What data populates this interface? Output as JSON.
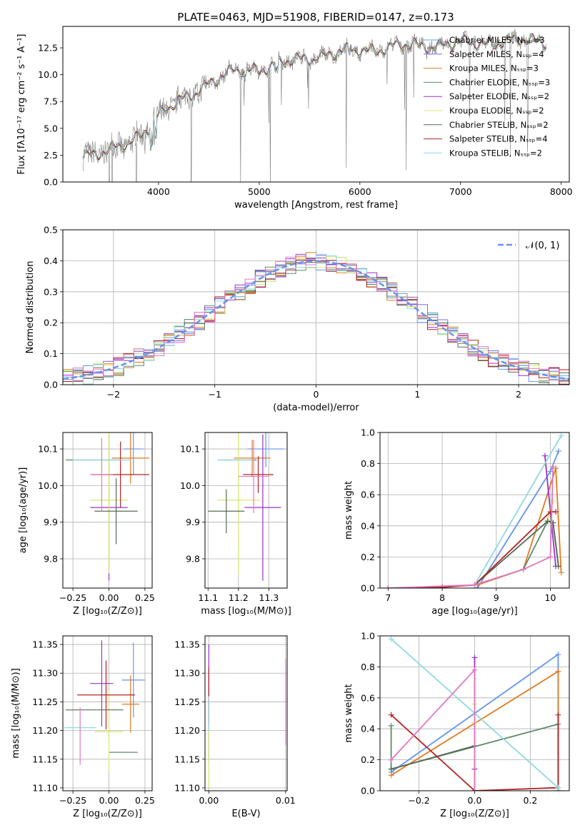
{
  "figure": {
    "title": "PLATE=0463, MJD=51908, FIBERID=0147, z=0.173"
  },
  "chart_data": [
    {
      "id": "spectrum",
      "type": "line",
      "xlabel": "wavelength [Angstrom, rest frame]",
      "ylabel": "Flux [fλ10⁻¹⁷ erg cm⁻² s⁻¹ A⁻¹]",
      "xlim": [
        3050,
        8080
      ],
      "ylim": [
        0,
        14.5
      ],
      "xticks": [
        "4000",
        "5000",
        "6000",
        "7000",
        "8000"
      ],
      "yticks": [
        "0.0",
        "2.5",
        "5.0",
        "7.5",
        "10.0",
        "12.5"
      ],
      "legend_position": "upper-right",
      "data_color": "#808080",
      "series": [
        {
          "name": "Chabrier MILES, Nₛₛₚ=3",
          "color": "#6495ed"
        },
        {
          "name": "Salpeter MILES, Nₛₛₚ=4",
          "color": "#7b68ee"
        },
        {
          "name": "Kroupa MILES, Nₛₛₚ=3",
          "color": "#e07b20"
        },
        {
          "name": "Chabrier ELODIE, Nₛₛₚ=3",
          "color": "#5f8a68"
        },
        {
          "name": "Salpeter ELODIE, Nₛₛₚ=2",
          "color": "#9932cc"
        },
        {
          "name": "Kroupa ELODIE, Nₛₛₚ=2",
          "color": "#d6e86b"
        },
        {
          "name": "Chabrier STELIB, Nₛₛₚ=2",
          "color": "#556b55"
        },
        {
          "name": "Salpeter STELIB, Nₛₛₚ=4",
          "color": "#b22222"
        },
        {
          "name": "Kroupa STELIB, Nₛₛₚ=2",
          "color": "#90d8e0"
        }
      ],
      "continuum_nodes": [
        [
          3250,
          2.6
        ],
        [
          3500,
          2.8
        ],
        [
          3700,
          3.5
        ],
        [
          3900,
          5.2
        ],
        [
          4000,
          6.2
        ],
        [
          4200,
          7.4
        ],
        [
          4500,
          9.3
        ],
        [
          4800,
          10.4
        ],
        [
          5000,
          10.6
        ],
        [
          5300,
          11.2
        ],
        [
          5600,
          11.8
        ],
        [
          6000,
          12.3
        ],
        [
          6500,
          12.7
        ],
        [
          7000,
          12.9
        ],
        [
          7500,
          13.1
        ],
        [
          7850,
          13.2
        ]
      ]
    },
    {
      "id": "residuals",
      "type": "step",
      "xlabel": "(data-model)/error",
      "ylabel": "Normed distribution",
      "xlim": [
        -2.5,
        2.5
      ],
      "ylim": [
        0,
        0.5
      ],
      "xticks": [
        "−2",
        "−1",
        "0",
        "1",
        "2"
      ],
      "yticks": [
        "0.0",
        "0.1",
        "0.2",
        "0.3",
        "0.4",
        "0.5"
      ],
      "legend": "𝒩(0, 1)",
      "legend_color": "#6495ed",
      "bin_edges_start": -2.5,
      "bin_width": 0.1,
      "n_bins": 50
    },
    {
      "id": "age-vs-z",
      "type": "errorbar",
      "xlabel": "Z [log₁₀(Z/Z⊙)]",
      "ylabel": "age  [log₁₀(age/yr)]",
      "xlim": [
        -0.32,
        0.3
      ],
      "ylim": [
        9.72,
        10.145
      ],
      "xticks": [
        "−0.25",
        "0.00",
        "0.25"
      ],
      "yticks": [
        "9.8",
        "9.9",
        "10.0",
        "10.1"
      ],
      "points": [
        {
          "x": 0.17,
          "y": 10.1,
          "xerr": 0.07,
          "yerr": 0.07,
          "color": "#6495ed"
        },
        {
          "x": 0.15,
          "y": 10.075,
          "xerr": 0.13,
          "yerr": 0.07,
          "color": "#e07b20"
        },
        {
          "x": -0.1,
          "y": 10.07,
          "xerr": 0.2,
          "yerr": 0.0,
          "color": "#5f8a68"
        },
        {
          "x": 0.0,
          "y": 9.94,
          "xerr": 0.13,
          "yerr": 0.2,
          "color": "#9932cc"
        },
        {
          "x": 0.0,
          "y": 9.96,
          "xerr": 0.13,
          "yerr": 0.2,
          "color": "#d6e86b"
        },
        {
          "x": 0.05,
          "y": 9.93,
          "xerr": 0.15,
          "yerr": 0.09,
          "color": "#556b55"
        },
        {
          "x": 0.08,
          "y": 10.03,
          "xerr": 0.2,
          "yerr": 0.09,
          "color": "#b22222"
        },
        {
          "x": -0.05,
          "y": 10.07,
          "xerr": 0.2,
          "yerr": 0.0,
          "color": "#90d8e0"
        },
        {
          "x": -0.05,
          "y": 10.03,
          "xerr": 0.08,
          "yerr": 0.1,
          "color": "#e377c2"
        }
      ]
    },
    {
      "id": "age-vs-mass",
      "type": "errorbar",
      "xlabel": "mass [log₁₀(M/M⊙)]",
      "xlim": [
        11.09,
        11.36
      ],
      "ylim": [
        9.72,
        10.145
      ],
      "xticks": [
        "11.1",
        "11.2",
        "11.3"
      ],
      "yticks": [
        "9.8",
        "9.9",
        "10.0",
        "10.1"
      ],
      "points": [
        {
          "x": 11.29,
          "y": 10.1,
          "xerr": 0.06,
          "yerr": 0.05,
          "color": "#6495ed"
        },
        {
          "x": 11.245,
          "y": 10.075,
          "xerr": 0.06,
          "yerr": 0.05,
          "color": "#e07b20"
        },
        {
          "x": 11.2,
          "y": 10.07,
          "xerr": 0.06,
          "yerr": 0.0,
          "color": "#5f8a68"
        },
        {
          "x": 11.28,
          "y": 9.94,
          "xerr": 0.06,
          "yerr": 0.2,
          "color": "#9932cc"
        },
        {
          "x": 11.2,
          "y": 9.96,
          "xerr": 0.07,
          "yerr": 0.2,
          "color": "#d6e86b"
        },
        {
          "x": 11.16,
          "y": 9.93,
          "xerr": 0.06,
          "yerr": 0.06,
          "color": "#556b55"
        },
        {
          "x": 11.265,
          "y": 10.03,
          "xerr": 0.05,
          "yerr": 0.05,
          "color": "#b22222"
        },
        {
          "x": 11.19,
          "y": 10.07,
          "xerr": 0.06,
          "yerr": 0.0,
          "color": "#90d8e0"
        },
        {
          "x": 11.25,
          "y": 10.025,
          "xerr": 0.05,
          "yerr": 0.1,
          "color": "#e377c2"
        }
      ]
    },
    {
      "id": "massweight-vs-age",
      "type": "line",
      "xlabel": "age  [log₁₀(age/yr)]",
      "ylabel": "mass weight",
      "xlim": [
        6.85,
        10.35
      ],
      "ylim": [
        0,
        1
      ],
      "xticks": [
        "7",
        "8",
        "9",
        "10"
      ],
      "yticks": [
        "0.0",
        "0.2",
        "0.4",
        "0.6",
        "0.8",
        "1.0"
      ],
      "series": [
        {
          "color": "#6495ed",
          "x": [
            8.65,
            10.0,
            10.15
          ],
          "y": [
            0.0,
            0.75,
            0.88
          ]
        },
        {
          "color": "#e07b20",
          "x": [
            8.65,
            9.5,
            10.1,
            10.2
          ],
          "y": [
            0.02,
            0.12,
            0.77,
            0.1
          ]
        },
        {
          "color": "#5f8a68",
          "x": [
            8.6,
            9.5,
            9.95,
            10.05,
            10.15
          ],
          "y": [
            0.02,
            0.12,
            0.43,
            0.42,
            0.14
          ]
        },
        {
          "color": "#9932cc",
          "x": [
            9.9,
            10.1
          ],
          "y": [
            0.85,
            0.14
          ]
        },
        {
          "color": "#d6e86b",
          "x": [
            9.95,
            10.05
          ],
          "y": [
            0.44,
            0.56
          ]
        },
        {
          "color": "#556b55",
          "x": [
            8.6,
            9.95,
            10.05,
            10.15
          ],
          "y": [
            0.02,
            0.43,
            0.42,
            0.14
          ]
        },
        {
          "color": "#b22222",
          "x": [
            7.0,
            8.0,
            8.6,
            10.0,
            10.1
          ],
          "y": [
            0.0,
            0.005,
            0.02,
            0.49,
            0.49
          ]
        },
        {
          "color": "#90d8e0",
          "x": [
            8.6,
            10.2
          ],
          "y": [
            0.02,
            0.98
          ]
        },
        {
          "color": "#e377c2",
          "x": [
            7.0,
            8.6,
            9.5,
            10.0,
            10.05
          ],
          "y": [
            0.0,
            0.02,
            0.12,
            0.2,
            0.78
          ]
        }
      ]
    },
    {
      "id": "mass-vs-z",
      "type": "errorbar",
      "xlabel": "Z [log₁₀(Z/Z⊙)]",
      "ylabel": "mass [log₁₀(M/M⊙)]",
      "xlim": [
        -0.32,
        0.3
      ],
      "ylim": [
        11.095,
        11.365
      ],
      "xticks": [
        "−0.25",
        "0.00",
        "0.25"
      ],
      "yticks": [
        "11.10",
        "11.15",
        "11.20",
        "11.25",
        "11.30",
        "11.35"
      ],
      "points": [
        {
          "x": 0.17,
          "y": 11.288,
          "xerr": 0.08,
          "yerr": 0.065,
          "color": "#6495ed"
        },
        {
          "x": 0.15,
          "y": 11.246,
          "xerr": 0.06,
          "yerr": 0.05,
          "color": "#e07b20"
        },
        {
          "x": 0.1,
          "y": 11.162,
          "xerr": 0.1,
          "yerr": 0.0,
          "color": "#5f8a68"
        },
        {
          "x": -0.05,
          "y": 11.282,
          "xerr": 0.08,
          "yerr": 0.075,
          "color": "#9932cc"
        },
        {
          "x": 0.0,
          "y": 11.198,
          "xerr": 0.1,
          "yerr": 0.07,
          "color": "#d6e86b"
        },
        {
          "x": -0.1,
          "y": 11.236,
          "xerr": 0.2,
          "yerr": 0.0,
          "color": "#556b55"
        },
        {
          "x": -0.02,
          "y": 11.262,
          "xerr": 0.2,
          "yerr": 0.06,
          "color": "#b22222"
        },
        {
          "x": -0.2,
          "y": 11.205,
          "xerr": 0.11,
          "yerr": 0.0,
          "color": "#90d8e0"
        },
        {
          "x": -0.2,
          "y": 11.19,
          "xerr": 0.0,
          "yerr": 0.05,
          "color": "#e377c2"
        }
      ]
    },
    {
      "id": "mass-vs-ebv",
      "type": "errorbar",
      "xlabel": "E(B-V)",
      "xlim": [
        -0.0005,
        0.0102
      ],
      "ylim": [
        11.095,
        11.365
      ],
      "xticks": [
        "0.00",
        "0.01"
      ],
      "yticks": [
        "11.10",
        "11.15",
        "11.20",
        "11.25",
        "11.30",
        "11.35"
      ],
      "points": [
        {
          "x": 0.0,
          "y": 11.25,
          "xerr": 0.0,
          "yerr": 0.1,
          "color": "#9932cc"
        },
        {
          "x": 0.0,
          "y": 11.26,
          "xerr": 0.0,
          "yerr": 0.05,
          "color": "#b22222"
        },
        {
          "x": 0.0,
          "y": 11.2,
          "xerr": 0.0,
          "yerr": 0.06,
          "color": "#90d8e0"
        },
        {
          "x": 0.0,
          "y": 11.15,
          "xerr": 0.0,
          "yerr": 0.05,
          "color": "#d6e86b"
        },
        {
          "x": 0.01,
          "y": 11.25,
          "xerr": 0.0,
          "yerr": 0.075,
          "color": "#e377c2"
        }
      ]
    },
    {
      "id": "massweight-vs-z",
      "type": "line",
      "xlabel": "Z [log₁₀(Z/Z⊙)]",
      "ylabel": "mass weight",
      "xlim": [
        -0.34,
        0.34
      ],
      "ylim": [
        0,
        1
      ],
      "xticks": [
        "−0.2",
        "0.0",
        "0.2"
      ],
      "yticks": [
        "0.0",
        "0.2",
        "0.4",
        "0.6",
        "0.8",
        "1.0"
      ],
      "series": [
        {
          "color": "#6495ed",
          "x": [
            -0.3,
            0.3,
            0.3
          ],
          "y": [
            0.12,
            0.88,
            0.0
          ]
        },
        {
          "color": "#e07b20",
          "x": [
            -0.3,
            0.3,
            0.3
          ],
          "y": [
            0.1,
            0.77,
            0.0
          ]
        },
        {
          "color": "#5f8a68",
          "x": [
            -0.3,
            -0.3,
            0.3,
            0.3
          ],
          "y": [
            0.42,
            0.14,
            0.43,
            0.0
          ]
        },
        {
          "color": "#9932cc",
          "x": [
            0.0,
            0.0
          ],
          "y": [
            0.86,
            0.14
          ]
        },
        {
          "color": "#d6e86b",
          "x": [
            0.0,
            0.0
          ],
          "y": [
            0.56,
            0.44
          ]
        },
        {
          "color": "#556b55",
          "x": [
            -0.3,
            0.0,
            0.0
          ],
          "y": [
            0.14,
            0.29,
            0.0
          ]
        },
        {
          "color": "#b22222",
          "x": [
            -0.3,
            0.0,
            0.3,
            0.3
          ],
          "y": [
            0.49,
            0.0,
            0.02,
            0.49
          ]
        },
        {
          "color": "#90d8e0",
          "x": [
            -0.3,
            0.3
          ],
          "y": [
            0.98,
            0.02
          ]
        },
        {
          "color": "#e377c2",
          "x": [
            -0.3,
            0.0,
            0.0
          ],
          "y": [
            0.2,
            0.78,
            0.0
          ]
        }
      ]
    }
  ]
}
